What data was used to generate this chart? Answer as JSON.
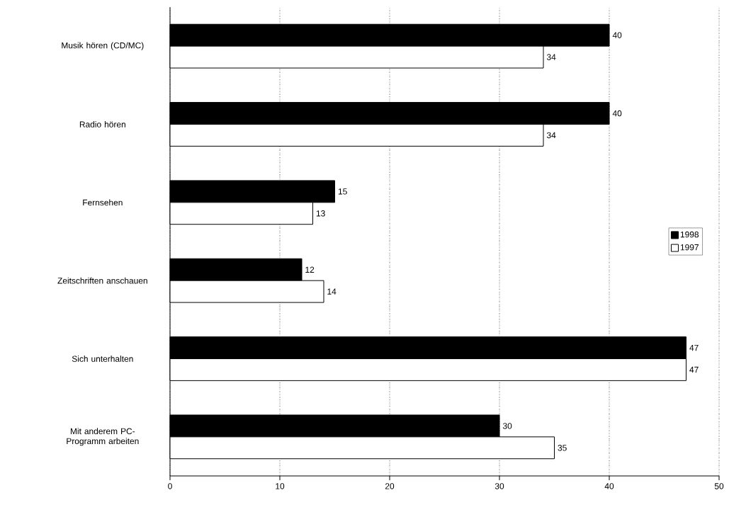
{
  "chart_data": {
    "type": "bar",
    "orientation": "horizontal",
    "categories": [
      "Musik hören (CD/MC)",
      "Radio hören",
      "Fernsehen",
      "Zeitschriften anschauen",
      "Sich unterhalten",
      "Mit anderem PC-Programm arbeiten"
    ],
    "series": [
      {
        "name": "1998",
        "color": "#000000",
        "values": [
          40,
          40,
          15,
          12,
          47,
          30
        ]
      },
      {
        "name": "1997",
        "color": "#ffffff",
        "values": [
          34,
          34,
          13,
          14,
          47,
          35
        ]
      }
    ],
    "xlim": [
      0,
      50
    ],
    "xticks": [
      0,
      10,
      20,
      30,
      40,
      50
    ],
    "grid": "x",
    "legend": "right",
    "data_labels": true
  }
}
